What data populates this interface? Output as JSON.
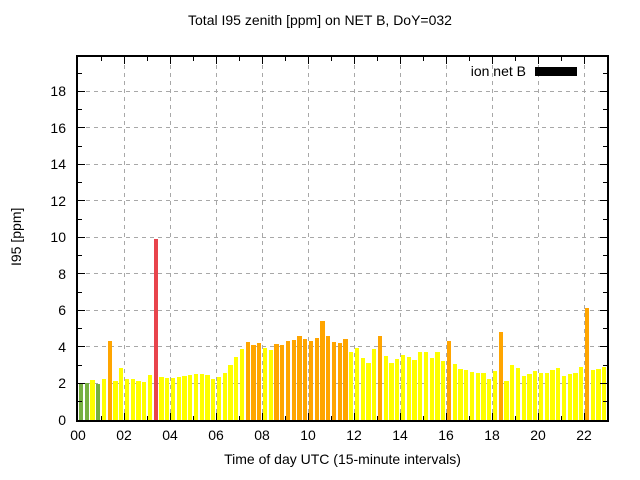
{
  "chart_data": {
    "type": "bar",
    "title": "Total I95 zenith [ppm] on NET B, DoY=032",
    "xlabel": "Time of day UTC (15-minute intervals)",
    "ylabel": "I95 [ppm]",
    "interval_minutes": 15,
    "x": [
      "00:00",
      "00:15",
      "00:30",
      "00:45",
      "01:00",
      "01:15",
      "01:30",
      "01:45",
      "02:00",
      "02:15",
      "02:30",
      "02:45",
      "03:00",
      "03:15",
      "03:30",
      "03:45",
      "04:00",
      "04:15",
      "04:30",
      "04:45",
      "05:00",
      "05:15",
      "05:30",
      "05:45",
      "06:00",
      "06:15",
      "06:30",
      "06:45",
      "07:00",
      "07:15",
      "07:30",
      "07:45",
      "08:00",
      "08:15",
      "08:30",
      "08:45",
      "09:00",
      "09:15",
      "09:30",
      "09:45",
      "10:00",
      "10:15",
      "10:30",
      "10:45",
      "11:00",
      "11:15",
      "11:30",
      "11:45",
      "12:00",
      "12:15",
      "12:30",
      "12:45",
      "13:00",
      "13:15",
      "13:30",
      "13:45",
      "14:00",
      "14:15",
      "14:30",
      "14:45",
      "15:00",
      "15:15",
      "15:30",
      "15:45",
      "16:00",
      "16:15",
      "16:30",
      "16:45",
      "17:00",
      "17:15",
      "17:30",
      "17:45",
      "18:00",
      "18:15",
      "18:30",
      "18:45",
      "19:00",
      "19:15",
      "19:30",
      "19:45",
      "20:00",
      "20:15",
      "20:30",
      "20:45",
      "21:00",
      "21:15",
      "21:30",
      "21:45",
      "22:00",
      "22:15",
      "22:30",
      "22:45"
    ],
    "values": [
      2.05,
      2.05,
      2.2,
      1.95,
      2.25,
      4.35,
      2.15,
      2.85,
      2.25,
      2.25,
      2.15,
      2.1,
      2.45,
      9.9,
      2.35,
      2.3,
      2.3,
      2.35,
      2.4,
      2.45,
      2.5,
      2.5,
      2.45,
      2.25,
      2.35,
      2.6,
      3.0,
      3.45,
      3.9,
      4.3,
      4.1,
      4.2,
      3.95,
      3.85,
      4.15,
      4.1,
      4.35,
      4.4,
      4.6,
      4.45,
      4.35,
      4.5,
      5.45,
      4.6,
      4.25,
      4.2,
      4.45,
      3.7,
      3.95,
      3.4,
      3.15,
      3.9,
      4.6,
      3.5,
      3.1,
      3.35,
      3.55,
      3.45,
      3.3,
      3.7,
      3.75,
      3.4,
      3.7,
      3.25,
      4.35,
      3.05,
      2.8,
      2.75,
      2.65,
      2.6,
      2.55,
      2.25,
      2.7,
      4.8,
      2.15,
      3.0,
      2.85,
      2.4,
      2.5,
      2.7,
      2.55,
      2.6,
      2.75,
      2.85,
      2.4,
      2.5,
      2.55,
      2.9,
      6.15,
      2.75,
      2.8,
      2.9
    ],
    "ylim": [
      0,
      19.89
    ],
    "xlim_hours": [
      0,
      23
    ],
    "yticks": [
      0,
      2,
      4,
      6,
      8,
      10,
      12,
      14,
      16,
      18
    ],
    "xticks_hours": [
      0,
      2,
      4,
      6,
      8,
      10,
      12,
      14,
      16,
      18,
      20,
      22
    ],
    "xtick_labels": [
      "00",
      "02",
      "04",
      "06",
      "08",
      "10",
      "12",
      "14",
      "16",
      "18",
      "20",
      "22"
    ],
    "grid": true,
    "legend": {
      "label": "ion net B",
      "swatch_color": "#000000",
      "position": "top-right"
    },
    "bar_colors": {
      "green": "#76b041",
      "yellow": "#ffff00",
      "orange": "#ffa500",
      "red": "#e8444c"
    },
    "color_thresholds": [
      {
        "max": 2.1,
        "color": "green"
      },
      {
        "max": 4.0,
        "color": "yellow"
      },
      {
        "max": 8.0,
        "color": "orange"
      },
      {
        "max": 999,
        "color": "red"
      }
    ],
    "grid_color": "#a8a8a8"
  }
}
